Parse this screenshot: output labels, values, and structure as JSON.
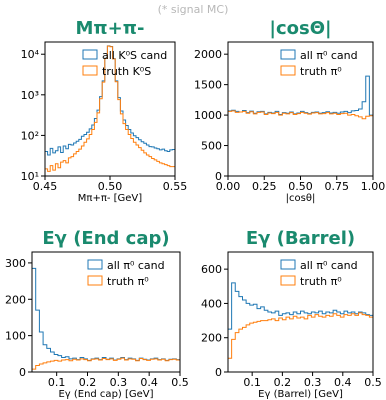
{
  "caption": "(* signal MC)",
  "colors": {
    "series_a": "#1f77b4",
    "series_b": "#ff7f0e",
    "title": "#1a8a6e",
    "axis": "#000000"
  },
  "chart_data": [
    {
      "type": "line",
      "title": "Mπ+π-",
      "xlabel": "Mπ+π- [GeV]",
      "ylabel": "",
      "xlim": [
        0.45,
        0.55
      ],
      "ylim": [
        10,
        20000
      ],
      "yscale": "log",
      "xticks": [
        0.45,
        0.5,
        0.55
      ],
      "xtick_labels": [
        "0.45",
        "0.50",
        "0.55"
      ],
      "yticks": [
        10,
        100,
        1000,
        10000
      ],
      "ytick_labels": [
        "10¹",
        "10²",
        "10³",
        "10⁴"
      ],
      "legend_position": "upper right",
      "legend": [
        "all K⁰S cand",
        "truth K⁰S"
      ],
      "bins": {
        "start": 0.45,
        "end": 0.55,
        "n": 50
      },
      "series": [
        {
          "name": "all K⁰S cand",
          "values": [
            40,
            33,
            48,
            37,
            42,
            52,
            38,
            55,
            47,
            60,
            58,
            65,
            72,
            80,
            95,
            105,
            120,
            145,
            180,
            260,
            420,
            900,
            2200,
            8000,
            16000,
            15500,
            7800,
            2200,
            850,
            400,
            240,
            175,
            140,
            115,
            98,
            88,
            78,
            70,
            64,
            58,
            53,
            52,
            49,
            47,
            44,
            46,
            42,
            40,
            44,
            45
          ]
        },
        {
          "name": "truth K⁰S",
          "values": [
            15,
            13,
            18,
            14,
            20,
            16,
            22,
            24,
            21,
            28,
            30,
            35,
            40,
            46,
            55,
            68,
            82,
            105,
            140,
            210,
            360,
            800,
            2050,
            7900,
            15800,
            15300,
            7700,
            2100,
            760,
            340,
            195,
            140,
            105,
            84,
            68,
            58,
            50,
            43,
            37,
            33,
            30,
            27,
            25,
            23,
            21,
            20,
            19,
            18,
            17,
            17
          ]
        }
      ]
    },
    {
      "type": "line",
      "title": "|cosΘ|",
      "xlabel": "|cosθ|",
      "ylabel": "",
      "xlim": [
        0,
        1
      ],
      "ylim": [
        0,
        2200
      ],
      "yscale": "linear",
      "xticks": [
        0,
        0.25,
        0.5,
        0.75,
        1.0
      ],
      "xtick_labels": [
        "0.00",
        "0.25",
        "0.50",
        "0.75",
        "1.00"
      ],
      "yticks": [
        0,
        500,
        1000,
        1500,
        2000
      ],
      "ytick_labels": [
        "0",
        "500",
        "1000",
        "1500",
        "2000"
      ],
      "legend_position": "upper right",
      "legend": [
        "all π⁰ cand",
        "truth π⁰"
      ],
      "bins": {
        "start": 0,
        "end": 1,
        "n": 40
      },
      "series": [
        {
          "name": "all π⁰ cand",
          "values": [
            1070,
            1080,
            1060,
            1050,
            1075,
            1040,
            1065,
            1030,
            1055,
            1060,
            1020,
            1045,
            1035,
            1060,
            1010,
            1040,
            1030,
            1050,
            1020,
            1035,
            1060,
            1040,
            1025,
            1045,
            1050,
            1030,
            1040,
            1055,
            1035,
            1045,
            1030,
            1050,
            1060,
            1040,
            1070,
            1075,
            1100,
            1220,
            1640,
            1000
          ]
        },
        {
          "name": "truth π⁰",
          "values": [
            1060,
            1070,
            1045,
            1050,
            1060,
            1030,
            1055,
            1020,
            1045,
            1050,
            1010,
            1035,
            1025,
            1045,
            1000,
            1030,
            1020,
            1040,
            1010,
            1025,
            1045,
            1030,
            1015,
            1035,
            1040,
            1020,
            1025,
            1040,
            1020,
            1030,
            1010,
            1025,
            1030,
            1000,
            1010,
            990,
            970,
            940,
            980,
            990
          ]
        }
      ]
    },
    {
      "type": "line",
      "title": "Eγ (End cap)",
      "xlabel": "Eγ (End cap) [GeV]",
      "ylabel": "",
      "xlim": [
        0.02,
        0.5
      ],
      "ylim": [
        0,
        330
      ],
      "yscale": "linear",
      "xticks": [
        0.1,
        0.2,
        0.3,
        0.4,
        0.5
      ],
      "xtick_labels": [
        "0.1",
        "0.2",
        "0.3",
        "0.4",
        "0.5"
      ],
      "yticks": [
        0,
        100,
        200,
        300
      ],
      "ytick_labels": [
        "0",
        "100",
        "200",
        "300"
      ],
      "legend_position": "upper right",
      "legend": [
        "all π⁰ cand",
        "truth π⁰"
      ],
      "bins": {
        "start": 0.02,
        "end": 0.5,
        "n": 40
      },
      "series": [
        {
          "name": "all π⁰ cand",
          "values": [
            285,
            170,
            110,
            75,
            65,
            55,
            48,
            45,
            40,
            42,
            36,
            38,
            34,
            40,
            36,
            32,
            36,
            38,
            34,
            40,
            35,
            38,
            33,
            36,
            40,
            34,
            38,
            36,
            32,
            38,
            35,
            33,
            36,
            38,
            34,
            36,
            32,
            35,
            36,
            34
          ]
        },
        {
          "name": "truth π⁰",
          "values": [
            8,
            18,
            22,
            25,
            28,
            30,
            32,
            30,
            33,
            34,
            31,
            35,
            33,
            36,
            34,
            31,
            35,
            36,
            33,
            37,
            34,
            36,
            32,
            35,
            38,
            33,
            36,
            35,
            31,
            37,
            34,
            32,
            35,
            36,
            33,
            35,
            31,
            34,
            35,
            33
          ]
        }
      ]
    },
    {
      "type": "line",
      "title": "Eγ (Barrel)",
      "xlabel": "Eγ (Barrel) [GeV]",
      "ylabel": "",
      "xlim": [
        0.02,
        0.5
      ],
      "ylim": [
        0,
        700
      ],
      "yscale": "linear",
      "xticks": [
        0.1,
        0.2,
        0.3,
        0.4,
        0.5
      ],
      "xtick_labels": [
        "0.1",
        "0.2",
        "0.3",
        "0.4",
        "0.5"
      ],
      "yticks": [
        0,
        200,
        400,
        600
      ],
      "ytick_labels": [
        "0",
        "200",
        "400",
        "600"
      ],
      "legend_position": "upper right",
      "legend": [
        "all π⁰ cand",
        "truth π⁰"
      ],
      "bins": {
        "start": 0.02,
        "end": 0.5,
        "n": 40
      },
      "series": [
        {
          "name": "all π⁰ cand",
          "values": [
            250,
            520,
            470,
            440,
            420,
            400,
            390,
            395,
            370,
            380,
            360,
            350,
            345,
            355,
            330,
            340,
            345,
            335,
            350,
            340,
            355,
            345,
            340,
            350,
            345,
            355,
            340,
            350,
            345,
            360,
            350,
            340,
            355,
            345,
            350,
            340,
            350,
            345,
            335,
            330
          ]
        },
        {
          "name": "truth π⁰",
          "values": [
            80,
            190,
            230,
            250,
            260,
            275,
            285,
            290,
            295,
            300,
            300,
            305,
            310,
            300,
            315,
            305,
            320,
            310,
            325,
            315,
            320,
            310,
            330,
            320,
            335,
            325,
            320,
            330,
            325,
            340,
            330,
            320,
            335,
            330,
            340,
            330,
            345,
            335,
            330,
            320
          ]
        }
      ]
    }
  ]
}
